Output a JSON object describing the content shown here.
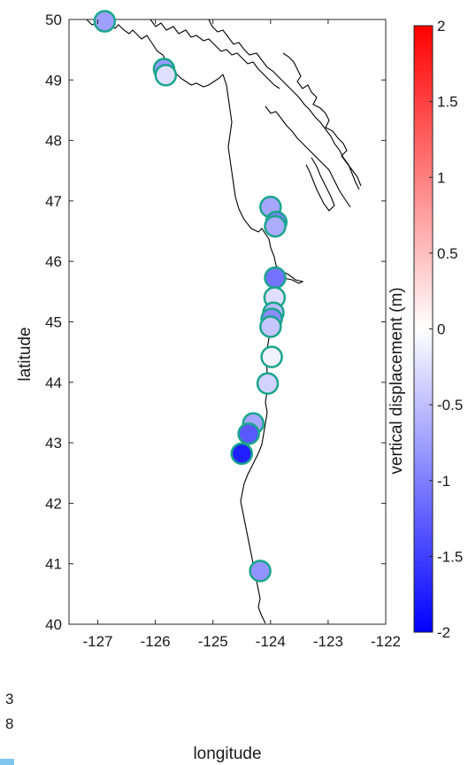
{
  "chart_data": {
    "type": "scatter",
    "title": "",
    "xlabel": "longitude",
    "ylabel": "latitude",
    "xlim": [
      -127.5,
      -122
    ],
    "ylim": [
      40,
      50
    ],
    "xticks": [
      -127,
      -126,
      -125,
      -124,
      -123,
      -122
    ],
    "yticks": [
      40,
      41,
      42,
      43,
      44,
      45,
      46,
      47,
      48,
      49,
      50
    ],
    "grid": false,
    "colorbar": {
      "label": "vertical displacement (m)",
      "range": [
        -2,
        2
      ],
      "ticks": [
        "2",
        "1.5",
        "1",
        "0.5",
        "0",
        "-0.5",
        "-1",
        "-1.5",
        "-2"
      ],
      "colormap": "blue-white-red"
    },
    "colors": {
      "marker_edge": "#1aa58c",
      "coastline": "#000000"
    },
    "points": [
      {
        "lon": -126.88,
        "lat": 49.97,
        "value": -0.75
      },
      {
        "lon": -125.85,
        "lat": 49.18,
        "value": -0.8
      },
      {
        "lon": -125.82,
        "lat": 49.08,
        "value": -0.25
      },
      {
        "lon": -124.0,
        "lat": 46.9,
        "value": -0.7
      },
      {
        "lon": -123.9,
        "lat": 46.65,
        "value": -1.0
      },
      {
        "lon": -123.92,
        "lat": 46.58,
        "value": -0.65
      },
      {
        "lon": -123.92,
        "lat": 45.73,
        "value": -1.1
      },
      {
        "lon": -123.93,
        "lat": 45.4,
        "value": -0.25
      },
      {
        "lon": -123.95,
        "lat": 45.15,
        "value": -0.55
      },
      {
        "lon": -123.98,
        "lat": 45.05,
        "value": -0.9
      },
      {
        "lon": -124.0,
        "lat": 44.92,
        "value": -0.45
      },
      {
        "lon": -123.98,
        "lat": 44.42,
        "value": -0.1
      },
      {
        "lon": -124.05,
        "lat": 43.98,
        "value": -0.35
      },
      {
        "lon": -124.3,
        "lat": 43.32,
        "value": -0.7
      },
      {
        "lon": -124.38,
        "lat": 43.15,
        "value": -1.3
      },
      {
        "lon": -124.5,
        "lat": 42.82,
        "value": -1.75
      },
      {
        "lon": -124.18,
        "lat": 40.88,
        "value": -0.85
      }
    ]
  },
  "edge_fragments": [
    "3",
    "8"
  ]
}
